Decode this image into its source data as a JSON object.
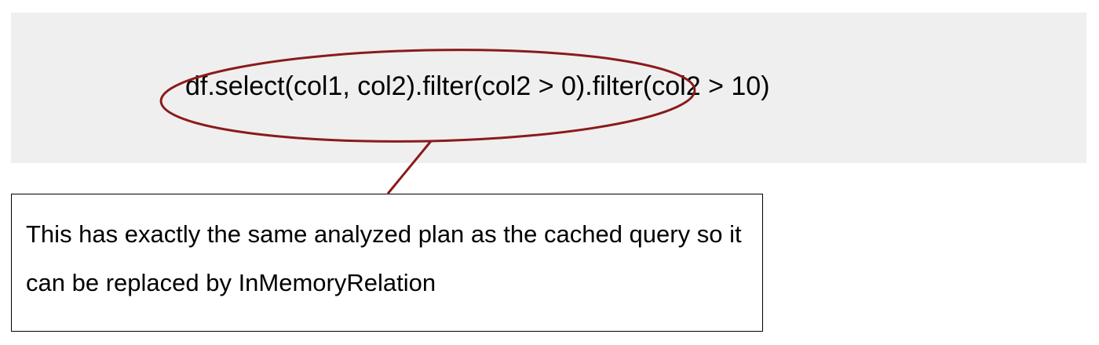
{
  "code": {
    "expression": "df.select(col1, col2).filter(col2 > 0).filter(col2 > 10)"
  },
  "annotation": {
    "text": "This has exactly the same analyzed plan as the cached query so it can be replaced by InMemoryRelation"
  },
  "colors": {
    "highlight": "#8b1a1a",
    "panel": "#efefef"
  }
}
